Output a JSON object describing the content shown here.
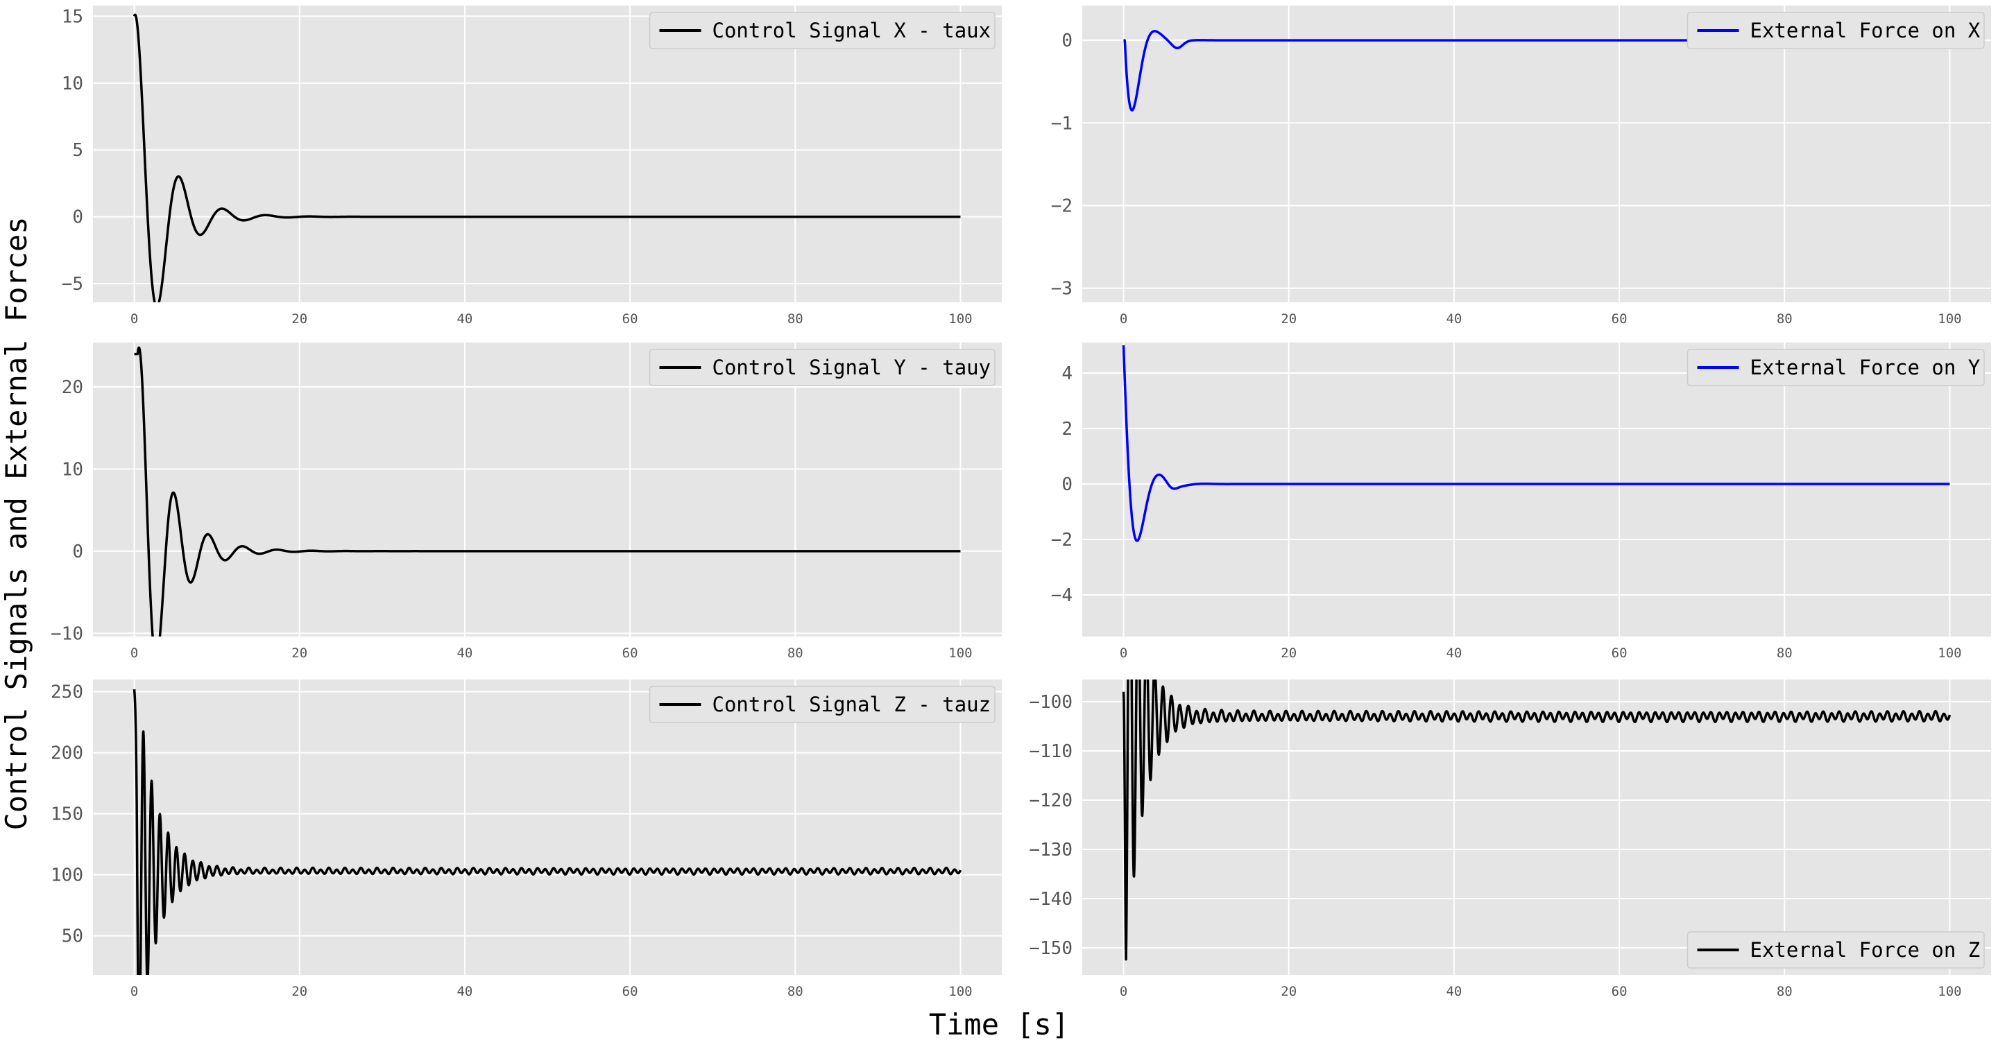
{
  "figure": {
    "xlabel": "Time [s]",
    "ylabel": "Control Signals and External Forces"
  },
  "chart_data": [
    {
      "type": "line",
      "panel": "top-left",
      "xlim": [
        -5,
        105
      ],
      "ylim": [
        -6.4,
        15.8
      ],
      "x_ticks": [
        0,
        20,
        40,
        60,
        80,
        100
      ],
      "y_ticks": [
        -5,
        0,
        5,
        10,
        15
      ],
      "grid": true,
      "legend_position": "top-right",
      "series": [
        {
          "name": "Control Signal X - taux",
          "color": "#000000",
          "shape": "damped",
          "start": 15,
          "start_dwell": 0,
          "final": 0,
          "period": 5.3,
          "tau": 3.3,
          "phase": 0.5,
          "amplitude": 10.5,
          "extra_peak": null
        }
      ]
    },
    {
      "type": "line",
      "panel": "top-right",
      "xlim": [
        -5,
        105
      ],
      "ylim": [
        -3.17,
        0.42
      ],
      "x_ticks": [
        0,
        20,
        40,
        60,
        80,
        100
      ],
      "y_ticks": [
        -3,
        -2,
        -1,
        0
      ],
      "grid": true,
      "legend_position": "top-right",
      "series": [
        {
          "name": "External Force on X",
          "color": "#0000ff",
          "shape": "damped",
          "start": 0,
          "start_dwell": 0.15,
          "final": 0,
          "period": 5.5,
          "tau": 1.5,
          "phase": 1.25,
          "amplitude": -3.5,
          "extra_peak": [
            6.5,
            -0.08,
            0.9
          ]
        }
      ]
    },
    {
      "type": "line",
      "panel": "middle-left",
      "xlim": [
        -5,
        105
      ],
      "ylim": [
        -10.4,
        25.4
      ],
      "x_ticks": [
        0,
        20,
        40,
        60,
        80,
        100
      ],
      "y_ticks": [
        -10,
        0,
        10,
        20
      ],
      "grid": true,
      "legend_position": "top-right",
      "series": [
        {
          "name": "Control Signal Y - tauy",
          "color": "#000000",
          "shape": "damped",
          "start": 24,
          "start_dwell": 0.4,
          "final": 0,
          "period": 4.2,
          "tau": 3.4,
          "phase": 0.6,
          "amplitude": 20.5,
          "extra_peak": null
        }
      ]
    },
    {
      "type": "line",
      "panel": "middle-right",
      "xlim": [
        -5,
        105
      ],
      "ylim": [
        -5.5,
        5.1
      ],
      "x_ticks": [
        0,
        20,
        40,
        60,
        80,
        100
      ],
      "y_ticks": [
        -4,
        -2,
        0,
        2,
        4
      ],
      "grid": true,
      "legend_position": "top-right",
      "series": [
        {
          "name": "External Force on Y",
          "color": "#0000ff",
          "shape": "damped",
          "start": 5,
          "start_dwell": 0,
          "final": 0,
          "period": 5.3,
          "tau": 1.6,
          "phase": 1.35,
          "amplitude": -8.5,
          "extra_peak": [
            5.8,
            -0.2,
            0.9
          ]
        }
      ]
    },
    {
      "type": "line",
      "panel": "bottom-left",
      "xlim": [
        -5,
        105
      ],
      "ylim": [
        18,
        260
      ],
      "x_ticks": [
        0,
        20,
        40,
        60,
        80,
        100
      ],
      "y_ticks": [
        50,
        100,
        150,
        200,
        250
      ],
      "grid": true,
      "legend_position": "top-right",
      "series": [
        {
          "name": "Control Signal Z - tauz",
          "color": "#000000",
          "shape": "oscillation",
          "start": 252,
          "final": 103,
          "period": 1.0,
          "tau": 2.2,
          "amplitude": 115,
          "ripple": 2.0
        }
      ]
    },
    {
      "type": "line",
      "panel": "bottom-right",
      "xlim": [
        -5,
        105
      ],
      "ylim": [
        -155.5,
        -95.5
      ],
      "x_ticks": [
        0,
        20,
        40,
        60,
        80,
        100
      ],
      "y_ticks": [
        -150,
        -140,
        -130,
        -120,
        -110,
        -100
      ],
      "grid": true,
      "legend_position": "bottom-right",
      "series": [
        {
          "name": "External Force on Z",
          "color": "#000000",
          "shape": "oscillation",
          "start": -98,
          "final": -103,
          "period": 1.0,
          "tau": 2.2,
          "amplitude": -58,
          "ripple": 0.8
        }
      ]
    }
  ]
}
